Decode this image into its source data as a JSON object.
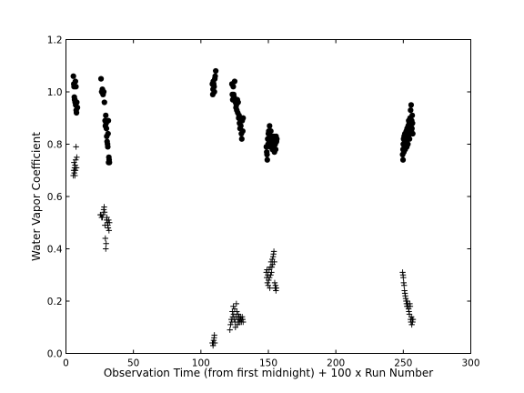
{
  "chart_data": {
    "type": "scatter",
    "title": "",
    "xlabel": "Observation Time (from first midnight) + 100 x Run Number",
    "ylabel": "Water Vapor Coefficient",
    "xlim": [
      0,
      300
    ],
    "ylim": [
      0.0,
      1.2
    ],
    "xticks": [
      0,
      50,
      100,
      150,
      200,
      250,
      300
    ],
    "yticks": [
      0.0,
      0.2,
      0.4,
      0.6,
      0.8,
      1.0,
      1.2
    ],
    "xtick_labels": [
      "0",
      "50",
      "100",
      "150",
      "200",
      "250",
      "300"
    ],
    "ytick_labels": [
      "0.0",
      "0.2",
      "0.4",
      "0.6",
      "0.8",
      "1.0",
      "1.2"
    ],
    "grid": false,
    "legend": "none",
    "series": [
      {
        "marker": "filled-circle",
        "color": "#000000",
        "points": [
          [
            5.5,
            1.06
          ],
          [
            5.8,
            1.03
          ],
          [
            6.0,
            1.02
          ],
          [
            6.2,
            0.98
          ],
          [
            6.4,
            0.97
          ],
          [
            6.6,
            0.97
          ],
          [
            6.8,
            0.96
          ],
          [
            7.0,
            1.04
          ],
          [
            7.2,
            0.95
          ],
          [
            7.4,
            1.02
          ],
          [
            7.6,
            0.93
          ],
          [
            7.8,
            0.92
          ],
          [
            8.0,
            0.96
          ],
          [
            8.5,
            0.94
          ],
          [
            26.0,
            1.05
          ],
          [
            26.5,
            1.0
          ],
          [
            27.0,
            1.01
          ],
          [
            27.5,
            0.99
          ],
          [
            28.0,
            1.0
          ],
          [
            28.5,
            0.96
          ],
          [
            29.0,
            0.89
          ],
          [
            29.2,
            0.87
          ],
          [
            29.5,
            0.91
          ],
          [
            29.8,
            0.88
          ],
          [
            30.0,
            0.86
          ],
          [
            30.2,
            0.83
          ],
          [
            30.5,
            0.81
          ],
          [
            30.8,
            0.8
          ],
          [
            31.0,
            0.79
          ],
          [
            31.2,
            0.84
          ],
          [
            31.4,
            0.89
          ],
          [
            31.6,
            0.73
          ],
          [
            31.8,
            0.75
          ],
          [
            32.0,
            0.74
          ],
          [
            32.2,
            0.73
          ],
          [
            108.5,
            1.03
          ],
          [
            108.8,
            0.99
          ],
          [
            109.0,
            1.01
          ],
          [
            109.2,
            1.04
          ],
          [
            109.5,
            1.03
          ],
          [
            109.8,
            1.02
          ],
          [
            110.0,
            1.0
          ],
          [
            110.3,
            1.05
          ],
          [
            110.6,
            1.06
          ],
          [
            111.0,
            1.08
          ],
          [
            123.0,
            1.03
          ],
          [
            123.3,
            0.99
          ],
          [
            123.6,
            0.97
          ],
          [
            124.0,
            1.02
          ],
          [
            124.3,
            0.99
          ],
          [
            124.6,
            0.98
          ],
          [
            125.0,
            1.04
          ],
          [
            125.3,
            0.97
          ],
          [
            125.6,
            0.96
          ],
          [
            126.0,
            0.94
          ],
          [
            126.3,
            0.95
          ],
          [
            126.6,
            0.93
          ],
          [
            127.0,
            0.97
          ],
          [
            127.3,
            0.92
          ],
          [
            127.6,
            0.96
          ],
          [
            128.0,
            0.9
          ],
          [
            128.3,
            0.91
          ],
          [
            128.6,
            0.88
          ],
          [
            129.0,
            0.86
          ],
          [
            129.3,
            0.89
          ],
          [
            129.6,
            0.87
          ],
          [
            130.0,
            0.84
          ],
          [
            130.3,
            0.82
          ],
          [
            130.6,
            0.89
          ],
          [
            131.0,
            0.85
          ],
          [
            131.3,
            0.9
          ],
          [
            148.5,
            0.79
          ],
          [
            148.8,
            0.77
          ],
          [
            149.0,
            0.76
          ],
          [
            149.2,
            0.74
          ],
          [
            149.5,
            0.82
          ],
          [
            149.8,
            0.8
          ],
          [
            150.0,
            0.84
          ],
          [
            150.3,
            0.85
          ],
          [
            150.6,
            0.81
          ],
          [
            150.9,
            0.87
          ],
          [
            151.2,
            0.83
          ],
          [
            151.5,
            0.79
          ],
          [
            151.8,
            0.85
          ],
          [
            152.1,
            0.83
          ],
          [
            152.4,
            0.79
          ],
          [
            152.7,
            0.81
          ],
          [
            153.0,
            0.78
          ],
          [
            153.3,
            0.82
          ],
          [
            153.6,
            0.8
          ],
          [
            153.9,
            0.83
          ],
          [
            154.2,
            0.79
          ],
          [
            154.5,
            0.77
          ],
          [
            154.8,
            0.82
          ],
          [
            155.1,
            0.8
          ],
          [
            155.4,
            0.78
          ],
          [
            155.7,
            0.83
          ],
          [
            156.0,
            0.81
          ],
          [
            156.3,
            0.82
          ],
          [
            249.5,
            0.76
          ],
          [
            249.8,
            0.78
          ],
          [
            250.0,
            0.8
          ],
          [
            250.2,
            0.82
          ],
          [
            250.4,
            0.77
          ],
          [
            250.6,
            0.83
          ],
          [
            250.8,
            0.79
          ],
          [
            251.0,
            0.81
          ],
          [
            251.2,
            0.84
          ],
          [
            251.4,
            0.78
          ],
          [
            251.6,
            0.82
          ],
          [
            251.8,
            0.8
          ],
          [
            252.0,
            0.83
          ],
          [
            252.2,
            0.85
          ],
          [
            252.4,
            0.81
          ],
          [
            252.6,
            0.79
          ],
          [
            252.8,
            0.86
          ],
          [
            253.0,
            0.82
          ],
          [
            253.2,
            0.84
          ],
          [
            253.4,
            0.8
          ],
          [
            253.6,
            0.87
          ],
          [
            253.8,
            0.83
          ],
          [
            254.0,
            0.89
          ],
          [
            254.2,
            0.85
          ],
          [
            254.4,
            0.88
          ],
          [
            254.6,
            0.82
          ],
          [
            254.8,
            0.86
          ],
          [
            255.0,
            0.9
          ],
          [
            255.2,
            0.84
          ],
          [
            255.4,
            0.93
          ],
          [
            255.6,
            0.87
          ],
          [
            255.8,
            0.95
          ],
          [
            256.0,
            0.85
          ],
          [
            256.2,
            0.89
          ],
          [
            256.4,
            0.86
          ],
          [
            256.6,
            0.91
          ],
          [
            256.8,
            0.88
          ],
          [
            257.0,
            0.84
          ],
          [
            249.8,
            0.74
          ]
        ]
      },
      {
        "marker": "plus",
        "color": "#000000",
        "points": [
          [
            5.5,
            0.68
          ],
          [
            5.8,
            0.7
          ],
          [
            6.0,
            0.73
          ],
          [
            6.2,
            0.69
          ],
          [
            6.4,
            0.71
          ],
          [
            6.6,
            0.68
          ],
          [
            6.8,
            0.72
          ],
          [
            7.0,
            0.7
          ],
          [
            7.2,
            0.74
          ],
          [
            7.5,
            0.79
          ],
          [
            7.8,
            0.71
          ],
          [
            8.0,
            0.75
          ],
          [
            25.5,
            0.53
          ],
          [
            26.0,
            0.53
          ],
          [
            26.5,
            0.52
          ],
          [
            27.0,
            0.52
          ],
          [
            27.5,
            0.53
          ],
          [
            28.0,
            0.55
          ],
          [
            28.3,
            0.56
          ],
          [
            28.6,
            0.54
          ],
          [
            28.9,
            0.49
          ],
          [
            29.2,
            0.44
          ],
          [
            29.5,
            0.4
          ],
          [
            29.8,
            0.42
          ],
          [
            30.1,
            0.51
          ],
          [
            30.4,
            0.52
          ],
          [
            30.7,
            0.5
          ],
          [
            31.0,
            0.49
          ],
          [
            31.3,
            0.48
          ],
          [
            31.6,
            0.51
          ],
          [
            31.9,
            0.47
          ],
          [
            32.2,
            0.5
          ],
          [
            108.5,
            0.04
          ],
          [
            108.8,
            0.04
          ],
          [
            109.0,
            0.03
          ],
          [
            109.2,
            0.04
          ],
          [
            109.5,
            0.05
          ],
          [
            109.8,
            0.06
          ],
          [
            110.0,
            0.07
          ],
          [
            110.3,
            0.04
          ],
          [
            121.5,
            0.09
          ],
          [
            122.0,
            0.11
          ],
          [
            122.5,
            0.13
          ],
          [
            123.0,
            0.12
          ],
          [
            123.3,
            0.16
          ],
          [
            123.6,
            0.14
          ],
          [
            124.0,
            0.18
          ],
          [
            124.3,
            0.15
          ],
          [
            124.6,
            0.13
          ],
          [
            125.0,
            0.17
          ],
          [
            125.3,
            0.12
          ],
          [
            125.6,
            0.1
          ],
          [
            126.0,
            0.14
          ],
          [
            126.3,
            0.19
          ],
          [
            126.6,
            0.16
          ],
          [
            127.0,
            0.11
          ],
          [
            127.3,
            0.13
          ],
          [
            127.6,
            0.15
          ],
          [
            128.0,
            0.12
          ],
          [
            128.3,
            0.14
          ],
          [
            128.6,
            0.13
          ],
          [
            129.0,
            0.12
          ],
          [
            129.3,
            0.14
          ],
          [
            129.6,
            0.13
          ],
          [
            130.0,
            0.12
          ],
          [
            130.3,
            0.13
          ],
          [
            130.6,
            0.14
          ],
          [
            131.0,
            0.13
          ],
          [
            131.3,
            0.12
          ],
          [
            148.5,
            0.31
          ],
          [
            148.8,
            0.29
          ],
          [
            149.0,
            0.32
          ],
          [
            149.3,
            0.27
          ],
          [
            149.6,
            0.3
          ],
          [
            149.9,
            0.26
          ],
          [
            150.2,
            0.28
          ],
          [
            150.5,
            0.32
          ],
          [
            150.8,
            0.29
          ],
          [
            151.1,
            0.25
          ],
          [
            151.4,
            0.33
          ],
          [
            151.7,
            0.3
          ],
          [
            152.0,
            0.35
          ],
          [
            152.3,
            0.31
          ],
          [
            152.6,
            0.33
          ],
          [
            152.9,
            0.36
          ],
          [
            153.2,
            0.34
          ],
          [
            153.5,
            0.37
          ],
          [
            153.8,
            0.38
          ],
          [
            154.1,
            0.39
          ],
          [
            154.4,
            0.35
          ],
          [
            154.7,
            0.27
          ],
          [
            155.0,
            0.25
          ],
          [
            155.3,
            0.26
          ],
          [
            155.6,
            0.24
          ],
          [
            155.9,
            0.25
          ],
          [
            249.5,
            0.31
          ],
          [
            249.8,
            0.3
          ],
          [
            250.0,
            0.29
          ],
          [
            250.3,
            0.27
          ],
          [
            250.6,
            0.26
          ],
          [
            250.9,
            0.24
          ],
          [
            251.2,
            0.23
          ],
          [
            251.5,
            0.22
          ],
          [
            251.8,
            0.21
          ],
          [
            252.1,
            0.2
          ],
          [
            252.4,
            0.19
          ],
          [
            252.7,
            0.18
          ],
          [
            253.0,
            0.2
          ],
          [
            253.3,
            0.19
          ],
          [
            253.6,
            0.18
          ],
          [
            253.9,
            0.17
          ],
          [
            254.2,
            0.16
          ],
          [
            254.5,
            0.15
          ],
          [
            254.8,
            0.19
          ],
          [
            255.1,
            0.18
          ],
          [
            255.4,
            0.13
          ],
          [
            255.7,
            0.12
          ],
          [
            256.0,
            0.14
          ],
          [
            256.3,
            0.11
          ],
          [
            256.6,
            0.13
          ],
          [
            256.9,
            0.12
          ],
          [
            257.2,
            0.13
          ]
        ]
      }
    ]
  }
}
